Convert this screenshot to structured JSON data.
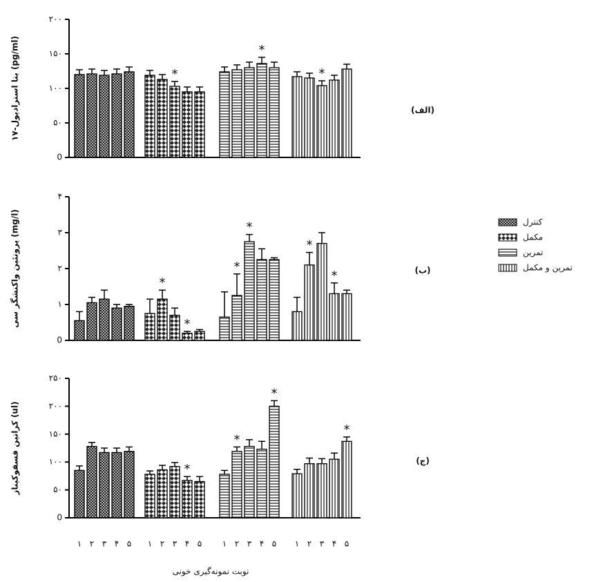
{
  "chart_data": [
    {
      "type": "bar",
      "label": "(الف)",
      "ylabel": "۱۷-بتا استرادیول (pg/ml)",
      "ylim": [
        0,
        200
      ],
      "yticks": [
        0,
        {
          "value": 50,
          "label": "۵۰"
        },
        {
          "value": 100,
          "label": "۱۰۰"
        },
        {
          "value": 150,
          "label": "۱۵۰"
        },
        {
          "value": 200,
          "label": "۲۰۰"
        }
      ],
      "series": [
        {
          "values": [
            120,
            121,
            119,
            121,
            124
          ],
          "errors": [
            7,
            7,
            7,
            7,
            7
          ],
          "stars": [
            false,
            false,
            false,
            false,
            false
          ]
        },
        {
          "values": [
            119,
            113,
            103,
            95,
            95
          ],
          "errors": [
            7,
            7,
            7,
            7,
            7
          ],
          "stars": [
            false,
            false,
            true,
            false,
            false
          ]
        },
        {
          "values": [
            124,
            127,
            130,
            136,
            130
          ],
          "errors": [
            7,
            7,
            8,
            9,
            8
          ],
          "stars": [
            false,
            false,
            false,
            true,
            false
          ]
        },
        {
          "values": [
            117,
            115,
            104,
            112,
            128
          ],
          "errors": [
            7,
            7,
            7,
            7,
            7
          ],
          "stars": [
            false,
            false,
            true,
            false,
            false
          ]
        }
      ]
    },
    {
      "type": "bar",
      "label": "(ب)",
      "ylabel": "پروتئین واکنشگر سی (mg/l)",
      "ylim": [
        0,
        4
      ],
      "yticks": [
        0,
        {
          "value": 1,
          "label": "۱"
        },
        {
          "value": 2,
          "label": "۲"
        },
        {
          "value": 3,
          "label": "۳"
        },
        {
          "value": 4,
          "label": "۴"
        }
      ],
      "series": [
        {
          "values": [
            0.55,
            1.05,
            1.15,
            0.9,
            0.95
          ],
          "errors": [
            0.25,
            0.15,
            0.25,
            0.1,
            0.05
          ],
          "stars": [
            false,
            false,
            false,
            false,
            false
          ]
        },
        {
          "values": [
            0.75,
            1.15,
            0.7,
            0.2,
            0.25
          ],
          "errors": [
            0.4,
            0.25,
            0.2,
            0.05,
            0.05
          ],
          "stars": [
            false,
            true,
            false,
            true,
            false
          ]
        },
        {
          "values": [
            0.65,
            1.25,
            2.75,
            2.25,
            2.25
          ],
          "errors": [
            0.7,
            0.6,
            0.2,
            0.3,
            0.05
          ],
          "stars": [
            false,
            true,
            true,
            false,
            false
          ]
        },
        {
          "values": [
            0.8,
            2.1,
            2.7,
            1.3,
            1.3
          ],
          "errors": [
            0.4,
            0.35,
            0.3,
            0.3,
            0.1
          ],
          "stars": [
            false,
            true,
            false,
            true,
            false
          ]
        }
      ]
    },
    {
      "type": "bar",
      "label": "(ج)",
      "ylabel": "کراتین فسفوکیناز (ul)",
      "ylim": [
        0,
        250
      ],
      "yticks": [
        0,
        {
          "value": 50,
          "label": "۵۰"
        },
        {
          "value": 100,
          "label": "۱۰۰"
        },
        {
          "value": 150,
          "label": "۱۵۰"
        },
        {
          "value": 200,
          "label": "۲۰۰"
        },
        {
          "value": 250,
          "label": "۲۵۰"
        }
      ],
      "categories": [
        "۱",
        "۲",
        "۳",
        "۴",
        "۵"
      ],
      "xlabel": "نوبت نمونه‌گیری خونی",
      "series": [
        {
          "values": [
            85,
            128,
            117,
            117,
            119
          ],
          "errors": [
            8,
            7,
            8,
            8,
            8
          ],
          "stars": [
            false,
            false,
            false,
            false,
            false
          ]
        },
        {
          "values": [
            78,
            86,
            92,
            67,
            65
          ],
          "errors": [
            6,
            8,
            7,
            7,
            9
          ],
          "stars": [
            false,
            false,
            false,
            true,
            false
          ]
        },
        {
          "values": [
            78,
            119,
            128,
            123,
            200
          ],
          "errors": [
            7,
            8,
            12,
            14,
            10
          ],
          "stars": [
            false,
            true,
            false,
            false,
            true
          ]
        },
        {
          "values": [
            79,
            97,
            97,
            105,
            137
          ],
          "errors": [
            8,
            10,
            9,
            11,
            8
          ],
          "stars": [
            false,
            false,
            false,
            false,
            true
          ]
        }
      ]
    }
  ],
  "significance_mark": "*",
  "legend": [
    "کنترل",
    "مکمل",
    "تمرین",
    "تمرین و مکمل"
  ]
}
